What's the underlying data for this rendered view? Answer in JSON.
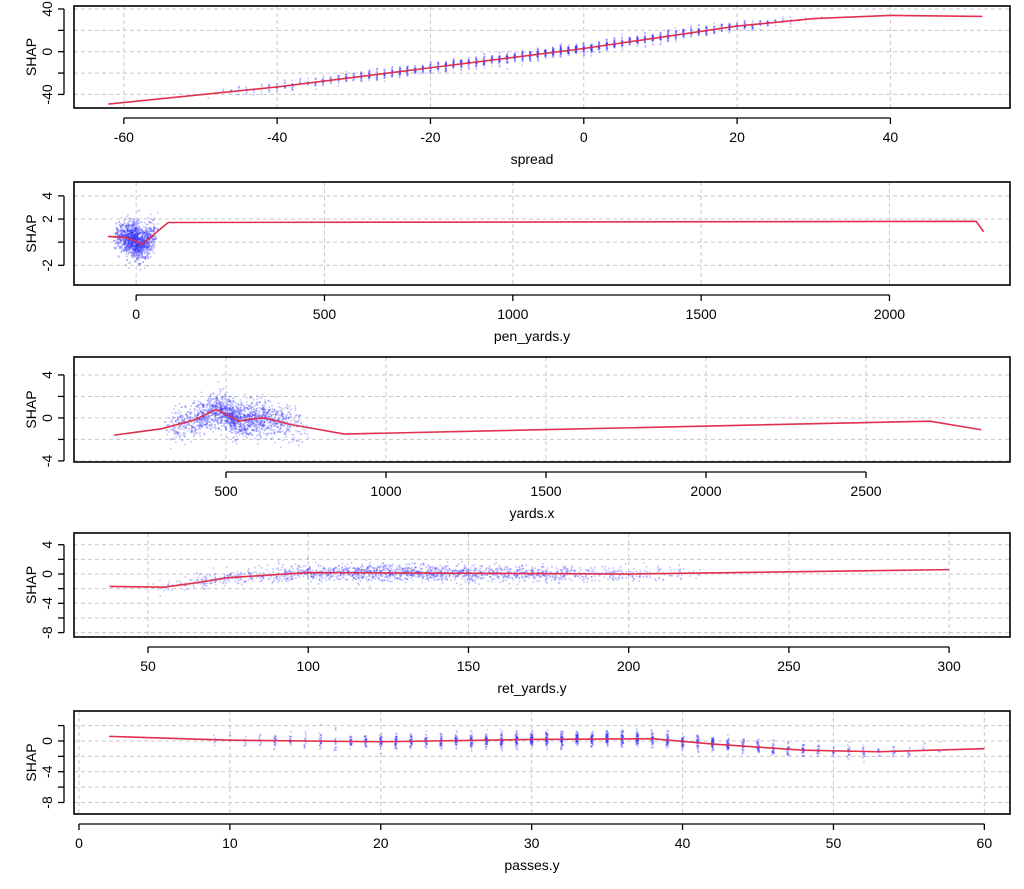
{
  "chart_data": [
    {
      "type": "scatter",
      "xlabel": "spread",
      "ylabel": "SHAP",
      "xlim": [
        -66.5,
        55.6
      ],
      "ylim": [
        -52.7,
        42.8
      ],
      "xticks": [
        -60,
        -40,
        -20,
        0,
        20,
        40
      ],
      "yticks": [
        -40,
        -20,
        0,
        20,
        40
      ],
      "ytick_labels": [
        "-40",
        "",
        "0",
        "",
        "40"
      ],
      "ygrid": [
        -40,
        -20,
        0,
        20,
        40
      ],
      "grid": true,
      "trend": {
        "x": [
          -62,
          -40,
          -20,
          0,
          20,
          30,
          40,
          52
        ],
        "y": [
          -49,
          -33,
          -15,
          3,
          24,
          31,
          34,
          33
        ]
      },
      "scatter": {
        "x_min": -50,
        "x_mode": 0,
        "x_max": 32,
        "y_sd": 2.5,
        "n": 1800,
        "integer_x": true
      }
    },
    {
      "type": "scatter",
      "xlabel": "pen_yards.y",
      "ylabel": "SHAP",
      "xlim": [
        -165,
        2320
      ],
      "ylim": [
        -3.7,
        5.2
      ],
      "xticks": [
        0,
        500,
        1000,
        1500,
        2000
      ],
      "yticks": [
        4,
        2,
        0,
        -2
      ],
      "ytick_labels": [
        "4",
        "2",
        "",
        "-2"
      ],
      "ygrid": [
        4,
        2,
        0,
        -2
      ],
      "grid": true,
      "trend": {
        "x": [
          -75,
          -30,
          0,
          15,
          30,
          85,
          2230,
          2250
        ],
        "y": [
          0.5,
          0.4,
          0.1,
          -0.2,
          0.2,
          1.7,
          1.8,
          0.9
        ]
      },
      "scatter": {
        "x_min": -60,
        "x_mode": 0,
        "x_max": 60,
        "y_sd": 0.75,
        "n": 1400,
        "integer_x": false
      }
    },
    {
      "type": "scatter",
      "xlabel": "yards.x",
      "ylabel": "SHAP",
      "xlim": [
        25,
        2950
      ],
      "ylim": [
        -4.1,
        5.67
      ],
      "xticks": [
        500,
        1000,
        1500,
        2000,
        2500
      ],
      "yticks": [
        4,
        2,
        0,
        -2,
        -4
      ],
      "ytick_labels": [
        "4",
        "",
        "0",
        "",
        "-4"
      ],
      "ygrid": [
        4,
        2,
        0,
        -2,
        -4
      ],
      "grid": true,
      "trend": {
        "x": [
          150,
          300,
          400,
          470,
          510,
          540,
          580,
          620,
          700,
          870,
          2700,
          2860
        ],
        "y": [
          -1.6,
          -1.0,
          -0.2,
          0.8,
          0.2,
          -0.3,
          -0.1,
          0,
          -0.6,
          -1.5,
          -0.3,
          -1.1
        ]
      },
      "scatter": {
        "x_min": 300,
        "x_mode": 520,
        "x_max": 760,
        "y_sd": 0.8,
        "n": 1800,
        "integer_x": false
      }
    },
    {
      "type": "scatter",
      "xlabel": "ret_yards.y",
      "ylabel": "SHAP",
      "xlim": [
        26.9,
        319
      ],
      "ylim": [
        -8.6,
        5.6
      ],
      "xticks": [
        50,
        100,
        150,
        200,
        250,
        300
      ],
      "yticks": [
        4,
        2,
        0,
        -2,
        -4,
        -6,
        -8
      ],
      "ytick_labels": [
        "4",
        "",
        "0",
        "",
        "-4",
        "",
        "-8"
      ],
      "ygrid": [
        4,
        2,
        0,
        -2,
        -4,
        -6,
        -8
      ],
      "grid": true,
      "trend": {
        "x": [
          38,
          55,
          65,
          75,
          100,
          150,
          200,
          300
        ],
        "y": [
          -1.7,
          -1.8,
          -1.2,
          -0.5,
          0.2,
          0.1,
          0,
          0.6
        ]
      },
      "scatter": {
        "x_min": 50,
        "x_mode": 125,
        "x_max": 230,
        "y_sd": 0.55,
        "n": 1800,
        "integer_x": false
      }
    },
    {
      "type": "scatter",
      "xlabel": "passes.y",
      "ylabel": "SHAP",
      "xlim": [
        -0.33,
        61.7
      ],
      "ylim": [
        -9.5,
        3.9
      ],
      "xticks": [
        0,
        10,
        20,
        30,
        40,
        50,
        60
      ],
      "yticks": [
        2,
        0,
        -2,
        -4,
        -6,
        -8
      ],
      "ytick_labels": [
        "",
        "0",
        "",
        "-4",
        "",
        "-8"
      ],
      "ygrid": [
        2,
        0,
        -2,
        -4,
        -6,
        -8
      ],
      "grid": true,
      "trend": {
        "x": [
          2,
          10,
          20,
          30,
          38,
          42,
          48,
          53,
          60
        ],
        "y": [
          0.6,
          0.1,
          -0.1,
          0.2,
          0.3,
          -0.4,
          -1.2,
          -1.4,
          -1.0
        ]
      },
      "scatter": {
        "x_min": 8,
        "x_mode": 33,
        "x_max": 58,
        "y_sd": 0.5,
        "n": 1800,
        "integer_x": true
      }
    }
  ],
  "colors": {
    "points": "#3030ff",
    "trend": "#e0304e",
    "grid": "#c8c8c8"
  }
}
